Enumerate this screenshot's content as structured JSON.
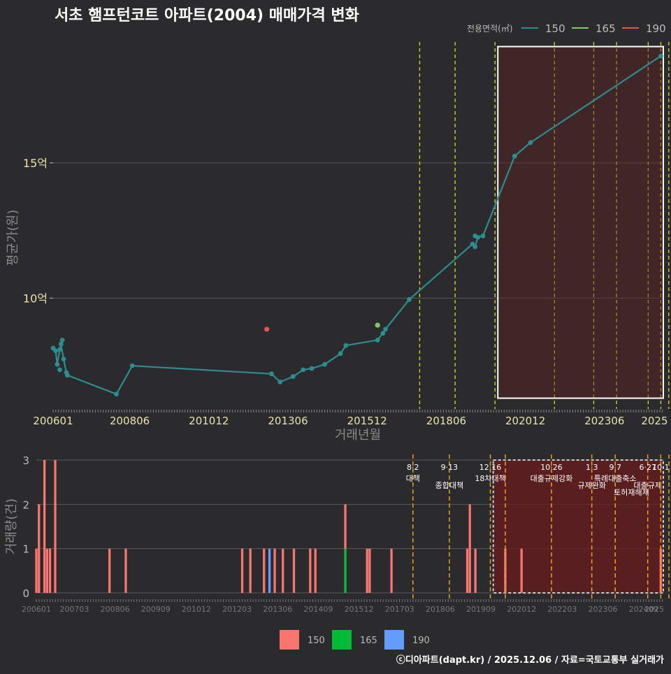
{
  "title": "서초 햄프턴코트 아파트(2004) 매매가격 변화",
  "footer": "ⓒ디아파트(dapt.kr) / 2025.12.06 / 자료=국토교통부 실거래가",
  "colors": {
    "background": "#2b2b2d",
    "grid": "#5a5a5a",
    "s150_line": "#2a8e8e",
    "s165_point": "#7fc96b",
    "s190_point": "#e05555",
    "bar150": "#f8766d",
    "bar165": "#00ba38",
    "bar190": "#619cff",
    "policy_line": "#d9d923",
    "policy_line_bottom": "#e6a21a",
    "highlight_fill": "#5a2222",
    "title": "#ffffff",
    "tick_top": "#e8e2b0",
    "tick_bottom": "#777777",
    "axis_title": "#8a8a8a"
  },
  "chart_data": [
    {
      "id": "price",
      "type": "line",
      "title": "서초 햄프턴코트 아파트(2004) 매매가격 변화",
      "xlabel": "거래년월",
      "ylabel": "평균가(원)",
      "x_unit": "decimal year",
      "xlim": [
        2006.0,
        2025.3
      ],
      "ylim": [
        5.9,
        19.6
      ],
      "x_tick_labels": [
        "200601",
        "200806",
        "201012",
        "201306",
        "201512",
        "201806",
        "202012",
        "202306",
        "2025"
      ],
      "x_tick_values": [
        2006.0,
        2008.42,
        2010.92,
        2013.42,
        2015.92,
        2018.42,
        2020.92,
        2023.42,
        2025.0
      ],
      "y_tick_labels": [
        "10억",
        "15억"
      ],
      "y_tick_values": [
        10,
        15
      ],
      "legend": {
        "title": "전용면적(㎡)",
        "entries": [
          "150",
          "165",
          "190"
        ],
        "position": "top-right"
      },
      "series": [
        {
          "name": "150",
          "kind": "line",
          "points": [
            [
              2006.08,
              8.05
            ],
            [
              2006.13,
              7.55
            ],
            [
              2006.21,
              8.1
            ],
            [
              2006.25,
              8.3
            ],
            [
              2006.33,
              7.75
            ],
            [
              2006.42,
              7.25
            ],
            [
              2006.45,
              7.15
            ],
            [
              2008.0,
              6.45
            ],
            [
              2008.5,
              7.5
            ],
            [
              2012.9,
              7.2
            ],
            [
              2013.17,
              6.9
            ],
            [
              2013.58,
              7.1
            ],
            [
              2013.9,
              7.35
            ],
            [
              2014.17,
              7.4
            ],
            [
              2014.58,
              7.55
            ],
            [
              2015.08,
              7.95
            ],
            [
              2015.25,
              8.25
            ],
            [
              2016.25,
              8.45
            ],
            [
              2016.5,
              8.85
            ],
            [
              2017.25,
              9.95
            ],
            [
              2019.25,
              12.0
            ],
            [
              2019.33,
              11.9
            ],
            [
              2019.42,
              12.25
            ],
            [
              2019.58,
              12.3
            ],
            [
              2020.58,
              15.25
            ],
            [
              2021.08,
              15.75
            ],
            [
              2025.2,
              18.95
            ]
          ],
          "markers_only": [
            [
              2006.0,
              8.15
            ],
            [
              2006.21,
              7.35
            ],
            [
              2006.29,
              8.45
            ],
            [
              2019.33,
              12.3
            ],
            [
              2016.42,
              8.7
            ]
          ]
        },
        {
          "name": "165",
          "kind": "point",
          "points": [
            [
              2016.25,
              9.0
            ]
          ]
        },
        {
          "name": "190",
          "kind": "point",
          "points": [
            [
              2012.75,
              8.85
            ]
          ]
        }
      ],
      "policy_dates": [
        2017.58,
        2018.7,
        2019.96,
        2021.84,
        2023.08,
        2023.8,
        2024.8,
        2025.2,
        2025.45
      ],
      "highlight_range": {
        "x": [
          2020.05,
          2025.5
        ],
        "y": [
          6.3,
          19.3
        ]
      }
    },
    {
      "id": "volume",
      "type": "bar",
      "ylabel": "거래량(건)",
      "x_unit": "decimal year",
      "xlim": [
        2006.0,
        2025.3
      ],
      "ylim": [
        0,
        3
      ],
      "y_tick_values": [
        0,
        1,
        2,
        3
      ],
      "x_tick_labels": [
        "200601",
        "200703",
        "200806",
        "200909",
        "201012",
        "201203",
        "201306",
        "201409",
        "201512",
        "201703",
        "201806",
        "201909",
        "202012",
        "202203",
        "202306",
        "202409",
        "2025"
      ],
      "x_tick_values": [
        2006.0,
        2007.17,
        2008.42,
        2009.67,
        2010.92,
        2012.17,
        2013.42,
        2014.67,
        2015.92,
        2017.17,
        2018.42,
        2019.67,
        2020.92,
        2022.17,
        2023.42,
        2024.67,
        2025.0
      ],
      "legend": {
        "entries": [
          "150",
          "165",
          "190"
        ],
        "position": "bottom"
      },
      "bars": [
        {
          "x": 2006.0,
          "value": 1,
          "series": "150"
        },
        {
          "x": 2006.08,
          "value": 2,
          "series": "150"
        },
        {
          "x": 2006.25,
          "value": 3,
          "series": "150"
        },
        {
          "x": 2006.33,
          "value": 1,
          "series": "150"
        },
        {
          "x": 2006.42,
          "value": 1,
          "series": "150"
        },
        {
          "x": 2006.58,
          "value": 3,
          "series": "150"
        },
        {
          "x": 2008.25,
          "value": 1,
          "series": "150"
        },
        {
          "x": 2008.75,
          "value": 1,
          "series": "150"
        },
        {
          "x": 2012.33,
          "value": 1,
          "series": "150"
        },
        {
          "x": 2012.58,
          "value": 1,
          "series": "150"
        },
        {
          "x": 2013.0,
          "value": 1,
          "series": "150"
        },
        {
          "x": 2013.17,
          "value": 1,
          "series": "190"
        },
        {
          "x": 2013.33,
          "value": 1,
          "series": "150"
        },
        {
          "x": 2013.58,
          "value": 1,
          "series": "150"
        },
        {
          "x": 2013.92,
          "value": 1,
          "series": "150"
        },
        {
          "x": 2014.42,
          "value": 1,
          "series": "150"
        },
        {
          "x": 2014.58,
          "value": 1,
          "series": "150"
        },
        {
          "x": 2015.5,
          "value": 2,
          "series": "150"
        },
        {
          "x": 2015.5,
          "value": 1,
          "series": "165"
        },
        {
          "x": 2016.17,
          "value": 1,
          "series": "150"
        },
        {
          "x": 2016.25,
          "value": 1,
          "series": "150"
        },
        {
          "x": 2016.92,
          "value": 1,
          "series": "150"
        },
        {
          "x": 2019.25,
          "value": 1,
          "series": "150"
        },
        {
          "x": 2019.33,
          "value": 2,
          "series": "150"
        },
        {
          "x": 2019.5,
          "value": 1,
          "series": "150"
        },
        {
          "x": 2020.42,
          "value": 1,
          "series": "150"
        },
        {
          "x": 2020.92,
          "value": 1,
          "series": "150"
        },
        {
          "x": 2025.2,
          "value": 1,
          "series": "150"
        }
      ],
      "policy_lines": [
        {
          "x": 2017.58,
          "date": "8·2",
          "text": "대책"
        },
        {
          "x": 2018.7,
          "date": "9·13",
          "text": "종합대책"
        },
        {
          "x": 2019.96,
          "date": "12·16",
          "text": "18차대책"
        },
        {
          "x": 2020.42,
          "date": "",
          "text": ""
        },
        {
          "x": 2021.84,
          "date": "10·26",
          "text": "대출규제강화"
        },
        {
          "x": 2023.08,
          "date": "1·3",
          "text": "규제완화"
        },
        {
          "x": 2023.8,
          "date": "9·7",
          "text": "특례대출축소"
        },
        {
          "x": 2024.8,
          "date": "6·27",
          "text": "대출규제"
        },
        {
          "x": 2025.2,
          "date": "10·1",
          "text": ""
        },
        {
          "x": 2025.45,
          "date": "",
          "text": ""
        }
      ],
      "extra_annotations": [
        {
          "x": 2024.3,
          "text": "토허재해제"
        }
      ],
      "highlight_range": {
        "x": [
          2020.05,
          2025.5
        ],
        "y": [
          0,
          3
        ]
      }
    }
  ]
}
